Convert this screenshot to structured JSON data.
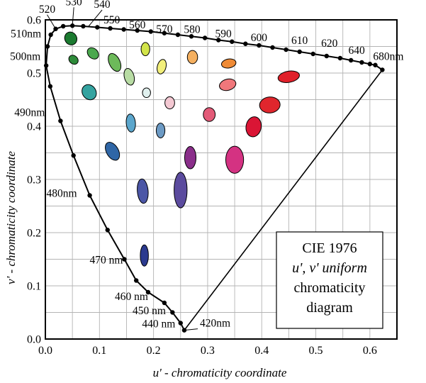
{
  "chart_data": {
    "type": "scatter",
    "title": "CIE 1976 u', v' uniform chromaticity diagram",
    "title_lines": [
      "CIE 1976",
      "u', v' uniform",
      "chromaticity",
      "diagram"
    ],
    "xlabel": "u' - chromaticity coordinate",
    "ylabel": "v' - chromaticity coordinate",
    "xlim": [
      0.0,
      0.65
    ],
    "ylim": [
      0.0,
      0.6
    ],
    "x_ticks": [
      0.0,
      0.1,
      0.2,
      0.3,
      0.4,
      0.5,
      0.6
    ],
    "x_tick_labels": [
      "0.0",
      "0.1",
      "0.2",
      "0.3",
      "0.4",
      "0.5",
      "0.6"
    ],
    "y_ticks": [
      0.0,
      0.1,
      0.2,
      0.3,
      0.4,
      0.5,
      0.6
    ],
    "y_tick_labels": [
      "0.0",
      "0.1",
      "0.2",
      "0.3",
      "0.4",
      "0.5",
      "0.6"
    ],
    "grid": true,
    "spectral_locus": [
      [
        0.2568,
        0.0165
      ],
      [
        0.25,
        0.03
      ],
      [
        0.235,
        0.05
      ],
      [
        0.22,
        0.068
      ],
      [
        0.19,
        0.088
      ],
      [
        0.168,
        0.11
      ],
      [
        0.146,
        0.15
      ],
      [
        0.115,
        0.205
      ],
      [
        0.082,
        0.27
      ],
      [
        0.052,
        0.345
      ],
      [
        0.028,
        0.41
      ],
      [
        0.009,
        0.475
      ],
      [
        0.0015,
        0.514
      ],
      [
        0.004,
        0.55
      ],
      [
        0.01,
        0.572
      ],
      [
        0.019,
        0.583
      ],
      [
        0.033,
        0.588
      ],
      [
        0.05,
        0.589
      ],
      [
        0.07,
        0.588
      ],
      [
        0.096,
        0.586
      ],
      [
        0.12,
        0.584
      ],
      [
        0.145,
        0.582
      ],
      [
        0.17,
        0.58
      ],
      [
        0.195,
        0.578
      ],
      [
        0.22,
        0.575
      ],
      [
        0.245,
        0.572
      ],
      [
        0.27,
        0.569
      ],
      [
        0.295,
        0.566
      ],
      [
        0.32,
        0.562
      ],
      [
        0.345,
        0.559
      ],
      [
        0.37,
        0.555
      ],
      [
        0.395,
        0.552
      ],
      [
        0.42,
        0.548
      ],
      [
        0.445,
        0.544
      ],
      [
        0.47,
        0.54
      ],
      [
        0.495,
        0.536
      ],
      [
        0.52,
        0.532
      ],
      [
        0.545,
        0.528
      ],
      [
        0.565,
        0.524
      ],
      [
        0.585,
        0.52
      ],
      [
        0.6,
        0.517
      ],
      [
        0.61,
        0.515
      ],
      [
        0.623,
        0.506
      ]
    ],
    "purple_line": [
      [
        0.623,
        0.506
      ],
      [
        0.2568,
        0.0165
      ]
    ],
    "wavelength_labels": [
      {
        "text": "520",
        "u": 0.019,
        "v": 0.583
      },
      {
        "text": "530",
        "u": 0.05,
        "v": 0.589
      },
      {
        "text": "540",
        "u": 0.08,
        "v": 0.588
      },
      {
        "text": "550",
        "u": 0.12,
        "v": 0.584
      },
      {
        "text": "560",
        "u": 0.17,
        "v": 0.58
      },
      {
        "text": "570",
        "u": 0.22,
        "v": 0.575
      },
      {
        "text": "580",
        "u": 0.27,
        "v": 0.569
      },
      {
        "text": "590",
        "u": 0.32,
        "v": 0.562
      },
      {
        "text": "600",
        "u": 0.395,
        "v": 0.552
      },
      {
        "text": "610",
        "u": 0.47,
        "v": 0.54
      },
      {
        "text": "620",
        "u": 0.52,
        "v": 0.532
      },
      {
        "text": "640",
        "u": 0.565,
        "v": 0.524
      },
      {
        "text": "680nm",
        "u": 0.623,
        "v": 0.506
      },
      {
        "text": "510nm",
        "u": 0.004,
        "v": 0.55
      },
      {
        "text": "500nm",
        "u": 0.0015,
        "v": 0.514
      },
      {
        "text": "490nm",
        "u": 0.028,
        "v": 0.41
      },
      {
        "text": "480nm",
        "u": 0.082,
        "v": 0.27
      },
      {
        "text": "470 nm",
        "u": 0.146,
        "v": 0.15
      },
      {
        "text": "460 nm",
        "u": 0.19,
        "v": 0.088
      },
      {
        "text": "450 nm",
        "u": 0.22,
        "v": 0.068
      },
      {
        "text": "440 nm",
        "u": 0.235,
        "v": 0.05
      },
      {
        "text": "420nm",
        "u": 0.2568,
        "v": 0.0165
      }
    ],
    "ellipses": [
      {
        "u": 0.047,
        "v": 0.565,
        "ru": 0.011,
        "rv": 0.0125,
        "angle": -30,
        "color": "#1b7a30"
      },
      {
        "u": 0.052,
        "v": 0.525,
        "ru": 0.0075,
        "rv": 0.0095,
        "angle": -50,
        "color": "#2e8b3a"
      },
      {
        "u": 0.088,
        "v": 0.537,
        "ru": 0.009,
        "rv": 0.012,
        "angle": -45,
        "color": "#4aa84e"
      },
      {
        "u": 0.128,
        "v": 0.52,
        "ru": 0.01,
        "rv": 0.018,
        "angle": -25,
        "color": "#6dba5a"
      },
      {
        "u": 0.155,
        "v": 0.493,
        "ru": 0.009,
        "rv": 0.016,
        "angle": -15,
        "color": "#b8dca4"
      },
      {
        "u": 0.185,
        "v": 0.545,
        "ru": 0.008,
        "rv": 0.0125,
        "angle": 0,
        "color": "#d2e44a"
      },
      {
        "u": 0.215,
        "v": 0.512,
        "ru": 0.008,
        "rv": 0.014,
        "angle": 15,
        "color": "#f2ef7a"
      },
      {
        "u": 0.272,
        "v": 0.53,
        "ru": 0.0095,
        "rv": 0.0125,
        "angle": 0,
        "color": "#f5b060"
      },
      {
        "u": 0.339,
        "v": 0.518,
        "ru": 0.0135,
        "rv": 0.0085,
        "angle": -10,
        "color": "#ef8a35"
      },
      {
        "u": 0.337,
        "v": 0.478,
        "ru": 0.0155,
        "rv": 0.0105,
        "angle": -15,
        "color": "#f0777b"
      },
      {
        "u": 0.45,
        "v": 0.493,
        "ru": 0.02,
        "rv": 0.0105,
        "angle": -10,
        "color": "#e0202a"
      },
      {
        "u": 0.081,
        "v": 0.464,
        "ru": 0.0125,
        "rv": 0.015,
        "angle": -35,
        "color": "#34a3a0"
      },
      {
        "u": 0.187,
        "v": 0.463,
        "ru": 0.0075,
        "rv": 0.009,
        "angle": 0,
        "color": "#e0f0ee"
      },
      {
        "u": 0.23,
        "v": 0.444,
        "ru": 0.009,
        "rv": 0.0115,
        "angle": 0,
        "color": "#f3c8d2"
      },
      {
        "u": 0.303,
        "v": 0.422,
        "ru": 0.011,
        "rv": 0.013,
        "angle": 0,
        "color": "#e35a78"
      },
      {
        "u": 0.415,
        "v": 0.44,
        "ru": 0.019,
        "rv": 0.015,
        "angle": -5,
        "color": "#e0262d"
      },
      {
        "u": 0.385,
        "v": 0.399,
        "ru": 0.014,
        "rv": 0.019,
        "angle": 10,
        "color": "#da1535"
      },
      {
        "u": 0.158,
        "v": 0.406,
        "ru": 0.0085,
        "rv": 0.017,
        "angle": -5,
        "color": "#5ba6cc"
      },
      {
        "u": 0.213,
        "v": 0.392,
        "ru": 0.008,
        "rv": 0.014,
        "angle": 0,
        "color": "#6c9ac4"
      },
      {
        "u": 0.124,
        "v": 0.353,
        "ru": 0.011,
        "rv": 0.0185,
        "angle": -30,
        "color": "#2f66a6"
      },
      {
        "u": 0.268,
        "v": 0.341,
        "ru": 0.0105,
        "rv": 0.021,
        "angle": 0,
        "color": "#8a2e8a"
      },
      {
        "u": 0.35,
        "v": 0.337,
        "ru": 0.0165,
        "rv": 0.0255,
        "angle": 0,
        "color": "#d43282"
      },
      {
        "u": 0.18,
        "v": 0.278,
        "ru": 0.01,
        "rv": 0.023,
        "angle": -5,
        "color": "#4b56a6"
      },
      {
        "u": 0.25,
        "v": 0.28,
        "ru": 0.012,
        "rv": 0.0335,
        "angle": 0,
        "color": "#5b4b9e"
      },
      {
        "u": 0.183,
        "v": 0.157,
        "ru": 0.0075,
        "rv": 0.02,
        "angle": 0,
        "color": "#2b3a8f"
      }
    ]
  }
}
